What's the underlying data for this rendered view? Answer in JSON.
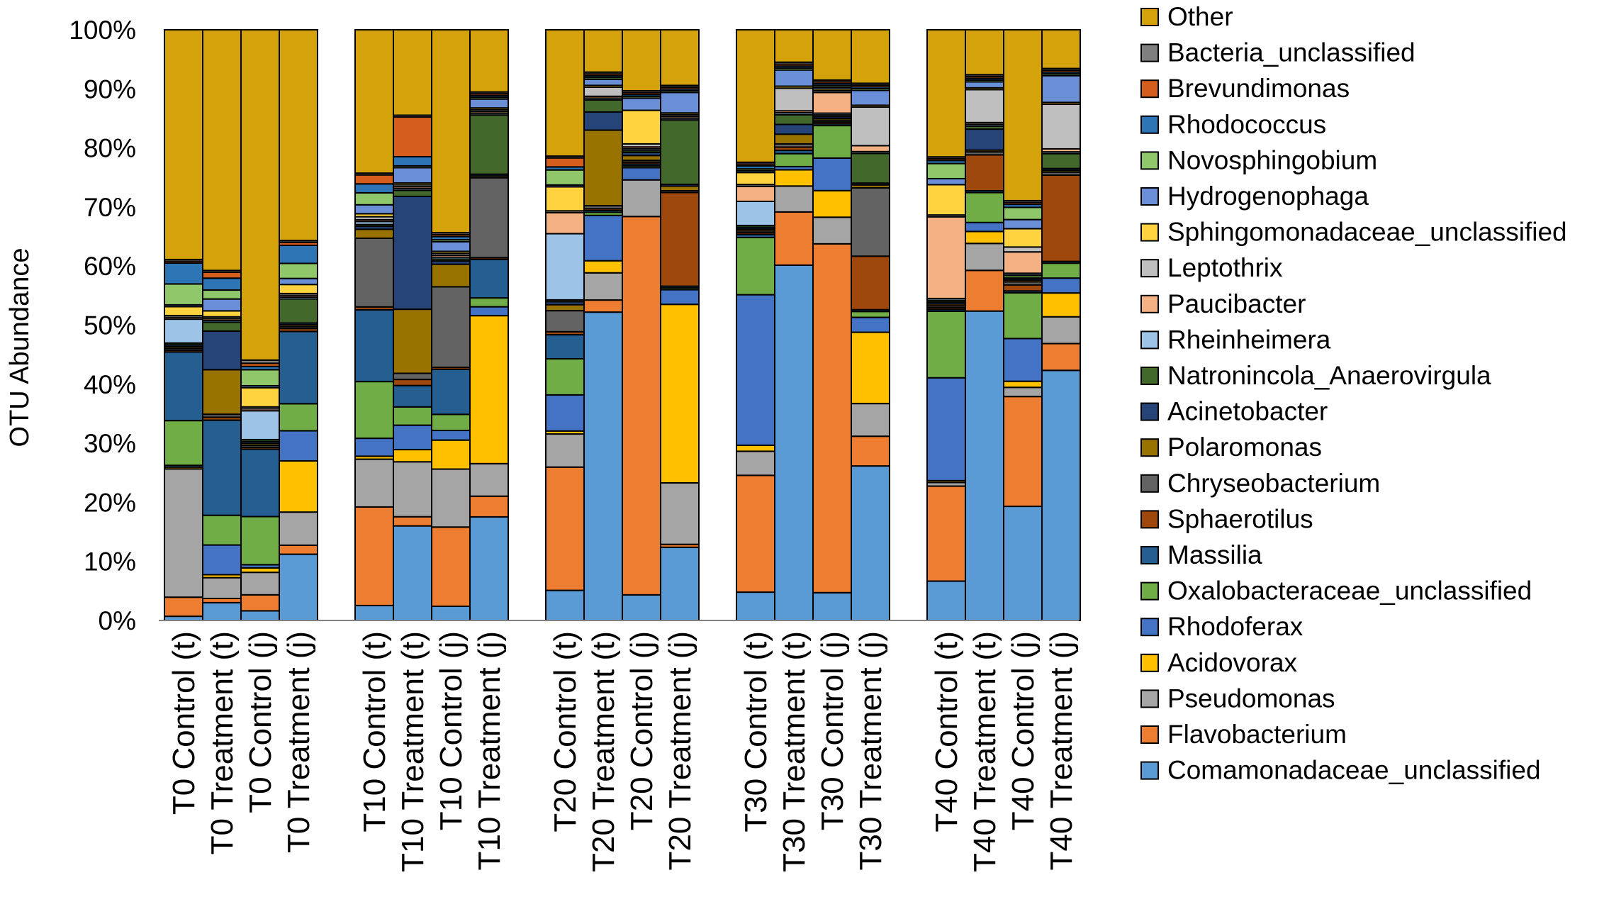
{
  "chart_data": {
    "type": "bar",
    "stacked": true,
    "title": "",
    "xlabel": "",
    "ylabel": "OTU Abundance",
    "ylim": [
      0,
      100
    ],
    "yticks": [
      "0%",
      "10%",
      "20%",
      "30%",
      "40%",
      "50%",
      "60%",
      "70%",
      "80%",
      "90%",
      "100%"
    ],
    "legend_position": "right",
    "categories": [
      "T0 Control (t)",
      "T0 Treatment (t)",
      "T0 Control (j)",
      "T0 Treatment (j)",
      "T10 Control (t)",
      "T10 Treatment (t)",
      "T10 Control (j)",
      "T10 Treatment (j)",
      "T20 Control (t)",
      "T20 Treatment (t)",
      "T20 Control (j)",
      "T20 Treatment (j)",
      "T30 Control (t)",
      "T30 Treatment (t)",
      "T30 Control (j)",
      "T30 Treatment (j)",
      "T40 Control (t)",
      "T40 Treatment (t)",
      "T40 Control (j)",
      "T40 Treatment (j)"
    ],
    "group_size": 4,
    "series": [
      {
        "name": "Comamonadaceae_unclassified",
        "color": "#5B9BD5",
        "values": [
          0.7,
          3.0,
          1.5,
          11.0,
          2.5,
          15.5,
          2.2,
          17.5,
          5.0,
          51.0,
          4.2,
          12.5,
          4.7,
          54.8,
          4.7,
          26.0,
          6.5,
          51.7,
          18.7,
          42.0
        ]
      },
      {
        "name": "Flavobacterium",
        "color": "#ED7D31",
        "values": [
          3.2,
          0.7,
          2.5,
          1.5,
          16.5,
          1.5,
          12.3,
          3.5,
          20.5,
          2.0,
          62.0,
          0.5,
          19.4,
          8.2,
          59.0,
          5.0,
          15.7,
          6.8,
          18.0,
          4.5
        ]
      },
      {
        "name": "Pseudomonas",
        "color": "#A5A5A5",
        "values": [
          21.5,
          3.5,
          3.5,
          5.5,
          8.0,
          9.0,
          9.0,
          5.5,
          5.5,
          4.5,
          6.0,
          10.5,
          4.0,
          4.0,
          4.5,
          5.5,
          0.6,
          4.5,
          1.5,
          4.5
        ]
      },
      {
        "name": "Acidovorax",
        "color": "#FFC000",
        "values": [
          0.3,
          0.5,
          0.7,
          8.5,
          0.5,
          2.0,
          4.5,
          25.0,
          0.5,
          2.0,
          0.0,
          30.5,
          1.0,
          2.5,
          4.5,
          12.0,
          0.3,
          2.0,
          1.0,
          4.0
        ]
      },
      {
        "name": "Rhodoferax",
        "color": "#4472C4",
        "values": [
          0.3,
          5.0,
          0.5,
          5.0,
          3.0,
          4.0,
          1.5,
          1.5,
          6.0,
          7.5,
          2.0,
          2.5,
          25.0,
          0.5,
          5.5,
          2.5,
          17.0,
          1.5,
          7.0,
          2.5
        ]
      },
      {
        "name": "Oxalobacteraceae_unclassified",
        "color": "#70AD47",
        "values": [
          7.5,
          5.0,
          7.5,
          4.5,
          9.5,
          3.0,
          2.5,
          1.5,
          6.0,
          0.5,
          0.3,
          0.3,
          9.5,
          2.0,
          5.5,
          1.0,
          11.0,
          5.0,
          7.5,
          2.5
        ]
      },
      {
        "name": "Massilia",
        "color": "#255E91",
        "values": [
          11.5,
          16.0,
          10.5,
          12.0,
          12.0,
          3.5,
          7.0,
          6.5,
          4.0,
          0.3,
          0.3,
          0.3,
          0.5,
          0.5,
          0.3,
          0.3,
          0.3,
          0.3,
          0.3,
          0.3
        ]
      },
      {
        "name": "Sphaerotilus",
        "color": "#9E480E",
        "values": [
          0.3,
          0.5,
          0.3,
          0.5,
          0.5,
          1.0,
          0.3,
          0.3,
          0.5,
          0.3,
          0.3,
          16.0,
          0.3,
          0.5,
          0.3,
          9.0,
          0.3,
          6.0,
          1.0,
          14.5
        ]
      },
      {
        "name": "Chryseobacterium",
        "color": "#636363",
        "values": [
          0.3,
          0.5,
          0.3,
          0.3,
          11.5,
          1.0,
          12.5,
          13.5,
          3.5,
          0.5,
          0.3,
          0.3,
          0.3,
          0.5,
          0.3,
          11.5,
          0.3,
          0.5,
          0.5,
          0.5
        ]
      },
      {
        "name": "Polaromonas",
        "color": "#997300",
        "values": [
          0.3,
          7.5,
          0.3,
          0.3,
          1.5,
          10.5,
          3.5,
          0.3,
          1.0,
          12.5,
          0.8,
          0.8,
          0.3,
          1.5,
          0.3,
          0.5,
          0.3,
          0.3,
          0.3,
          0.3
        ]
      },
      {
        "name": "Acinetobacter",
        "color": "#264478",
        "values": [
          0.3,
          6.5,
          0.3,
          0.3,
          0.5,
          18.5,
          0.5,
          0.3,
          0.5,
          3.0,
          0.5,
          0.3,
          0.3,
          1.5,
          0.3,
          0.3,
          0.3,
          3.5,
          0.3,
          0.3
        ]
      },
      {
        "name": "Natronincola_Anaerovirgula",
        "color": "#43682B",
        "values": [
          0.3,
          1.5,
          0.3,
          4.0,
          0.3,
          1.0,
          0.3,
          10.0,
          0.3,
          2.0,
          0.3,
          11.0,
          0.3,
          1.5,
          0.3,
          5.0,
          0.3,
          0.5,
          0.5,
          2.5
        ]
      },
      {
        "name": "Rheinheimera",
        "color": "#9DC3E6",
        "values": [
          4.0,
          0.3,
          4.5,
          0.3,
          0.5,
          0.3,
          0.3,
          0.3,
          11.0,
          0.3,
          0.3,
          0.3,
          4.0,
          0.3,
          0.3,
          0.3,
          0.3,
          0.3,
          0.3,
          0.3
        ]
      },
      {
        "name": "Paucibacter",
        "color": "#F4B183",
        "values": [
          0.3,
          0.3,
          0.3,
          0.3,
          0.3,
          0.3,
          0.3,
          0.3,
          3.5,
          0.3,
          0.3,
          0.3,
          2.5,
          0.3,
          3.5,
          1.0,
          13.5,
          0.3,
          3.5,
          0.5
        ]
      },
      {
        "name": "Leptothrix",
        "color": "#BFBFBF",
        "values": [
          0.3,
          0.3,
          0.3,
          0.3,
          0.5,
          0.3,
          0.3,
          0.3,
          0.3,
          1.5,
          0.5,
          0.3,
          0.3,
          3.5,
          0.3,
          6.5,
          0.3,
          5.5,
          0.8,
          7.5
        ]
      },
      {
        "name": "Sphingomonadaceae_unclassified",
        "color": "#FFD23F",
        "values": [
          1.5,
          1.0,
          3.0,
          1.5,
          0.5,
          0.3,
          0.3,
          0.3,
          4.0,
          0.3,
          5.5,
          0.3,
          2.0,
          0.3,
          0.3,
          0.3,
          5.0,
          0.3,
          3.0,
          0.3
        ]
      },
      {
        "name": "Hydrogenophaga",
        "color": "#6A8FD6",
        "values": [
          0.3,
          2.0,
          0.3,
          1.0,
          1.5,
          2.5,
          1.5,
          1.5,
          0.3,
          1.0,
          2.0,
          3.5,
          0.3,
          2.5,
          0.3,
          2.5,
          1.0,
          1.0,
          1.5,
          4.5
        ]
      },
      {
        "name": "Novosphingobium",
        "color": "#8FC76A",
        "values": [
          3.5,
          1.5,
          2.5,
          2.5,
          2.0,
          0.3,
          0.3,
          0.3,
          2.5,
          0.3,
          0.3,
          0.3,
          0.3,
          0.3,
          0.3,
          0.3,
          2.5,
          0.3,
          2.0,
          0.3
        ]
      },
      {
        "name": "Rhodococcus",
        "color": "#2E75B6",
        "values": [
          3.5,
          2.0,
          0.5,
          3.0,
          1.5,
          1.5,
          0.5,
          0.3,
          0.5,
          0.3,
          0.3,
          0.3,
          0.5,
          0.3,
          0.3,
          0.3,
          0.5,
          0.3,
          0.5,
          0.3
        ]
      },
      {
        "name": "Brevundimonas",
        "color": "#D55E1C",
        "values": [
          0.3,
          1.0,
          0.5,
          0.5,
          1.5,
          6.5,
          0.3,
          0.3,
          1.5,
          0.3,
          0.3,
          0.3,
          0.3,
          0.3,
          0.3,
          0.3,
          0.3,
          0.3,
          0.3,
          0.3
        ]
      },
      {
        "name": "Bacteria_unclassified",
        "color": "#7F7F7F",
        "values": [
          0.3,
          0.3,
          0.5,
          0.3,
          0.3,
          0.3,
          0.3,
          0.3,
          0.3,
          0.3,
          0.3,
          0.3,
          0.3,
          0.3,
          0.3,
          0.3,
          0.3,
          0.3,
          0.3,
          0.3
        ]
      },
      {
        "name": "Other",
        "color": "#D4A20A",
        "values": [
          38.5,
          40.5,
          51.5,
          35.0,
          24.0,
          14.0,
          31.5,
          10.5,
          21.0,
          7.0,
          10.0,
          9.5,
          22.0,
          5.0,
          8.5,
          9.0,
          21.0,
          7.5,
          28.0,
          6.5
        ]
      }
    ]
  }
}
